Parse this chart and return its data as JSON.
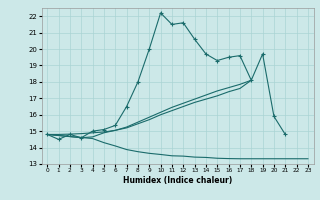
{
  "bg_color": "#cce8e8",
  "grid_color": "#aad4d4",
  "line_color": "#1a6b6b",
  "xlabel": "Humidex (Indice chaleur)",
  "xlim": [
    -0.5,
    23.5
  ],
  "ylim": [
    13,
    22.5
  ],
  "yticks": [
    13,
    14,
    15,
    16,
    17,
    18,
    19,
    20,
    21,
    22
  ],
  "xticks": [
    0,
    1,
    2,
    3,
    4,
    5,
    6,
    7,
    8,
    9,
    10,
    11,
    12,
    13,
    14,
    15,
    16,
    17,
    18,
    19,
    20,
    21,
    22,
    23
  ],
  "curve1_x": [
    0,
    1,
    2,
    3,
    4,
    5,
    6,
    7,
    8,
    9,
    10,
    11,
    12,
    13,
    14,
    15,
    16,
    17,
    18,
    19,
    20,
    21
  ],
  "curve1_y": [
    14.8,
    14.5,
    14.8,
    14.6,
    15.0,
    15.1,
    15.35,
    16.5,
    18.0,
    20.0,
    22.2,
    21.5,
    21.6,
    20.6,
    19.7,
    19.3,
    19.5,
    19.6,
    18.1,
    19.7,
    15.9,
    14.8
  ],
  "curve2_x": [
    0,
    3,
    4,
    5,
    6,
    7,
    8,
    9,
    10,
    11,
    12,
    13,
    14,
    15,
    16,
    17,
    18
  ],
  "curve2_y": [
    14.8,
    14.6,
    14.65,
    14.9,
    15.05,
    15.2,
    15.45,
    15.7,
    16.0,
    16.25,
    16.5,
    16.75,
    16.95,
    17.15,
    17.4,
    17.6,
    18.1
  ],
  "curve3_x": [
    0,
    1,
    2,
    3,
    4,
    5,
    6,
    7,
    8,
    9,
    10,
    11,
    12,
    13,
    14,
    15,
    16,
    17,
    18
  ],
  "curve3_y": [
    14.8,
    14.8,
    14.82,
    14.85,
    14.9,
    14.95,
    15.05,
    15.25,
    15.55,
    15.85,
    16.15,
    16.45,
    16.7,
    16.95,
    17.2,
    17.45,
    17.65,
    17.85,
    18.1
  ],
  "curve4_x": [
    0,
    4,
    5,
    6,
    7,
    8,
    9,
    10,
    11,
    12,
    13,
    14,
    15,
    16,
    17,
    18,
    19,
    20,
    21,
    22,
    23
  ],
  "curve4_y": [
    14.8,
    14.55,
    14.3,
    14.1,
    13.88,
    13.75,
    13.65,
    13.58,
    13.5,
    13.48,
    13.42,
    13.4,
    13.35,
    13.33,
    13.32,
    13.32,
    13.32,
    13.32,
    13.32,
    13.32,
    13.32
  ]
}
